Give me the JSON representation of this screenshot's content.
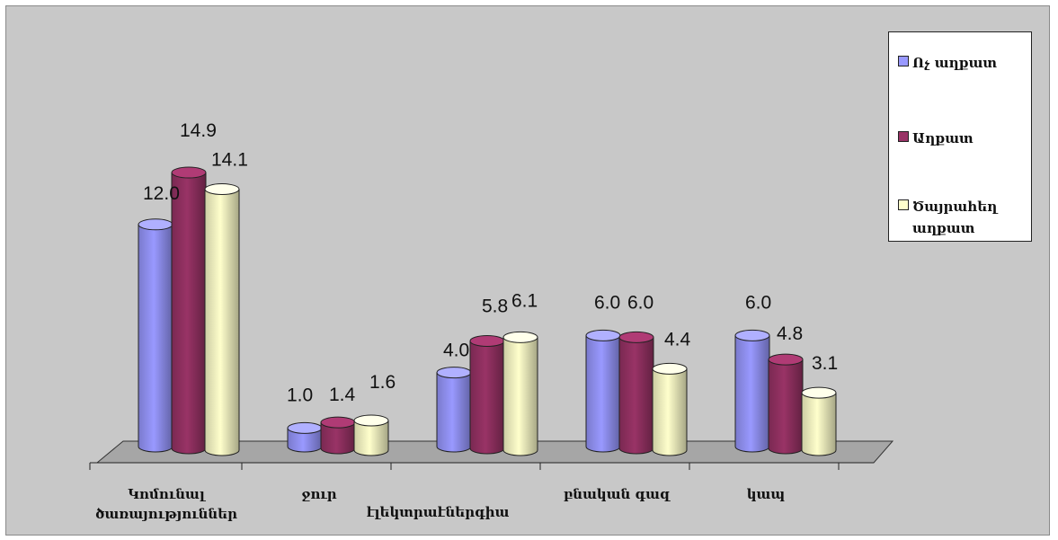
{
  "chart_data": {
    "type": "bar",
    "categories": [
      "Կոմունալ ծառայություններ",
      "ջուր",
      "էլեկտրաէներգիա",
      "բնական գազ",
      "կապ"
    ],
    "series": [
      {
        "name": "Ոչ աղքատ",
        "color": "#9999ff",
        "values": [
          12.0,
          1.0,
          4.0,
          6.0,
          6.0
        ],
        "labels": [
          "12.0",
          "1.0",
          "4.0",
          "6.0",
          "6.0"
        ]
      },
      {
        "name": "Աղքատ",
        "color": "#993366",
        "values": [
          14.9,
          1.4,
          5.8,
          6.0,
          4.8
        ],
        "labels": [
          "14.9",
          "1.4",
          "5.8",
          "6.0",
          "4.8"
        ]
      },
      {
        "name": "Ծայրահեղ աղքատ",
        "color": "#ffffcc",
        "values": [
          14.1,
          1.6,
          6.1,
          4.4,
          3.1
        ],
        "labels": [
          "14.1",
          "1.6",
          "6.1",
          "4.4",
          "3.1"
        ]
      }
    ],
    "ylim": [
      0,
      15
    ],
    "grid": false,
    "legend_position": "right",
    "style": "3d-cylinder",
    "background": "#c8c8c8",
    "floor_color": "#a6a6a6"
  }
}
